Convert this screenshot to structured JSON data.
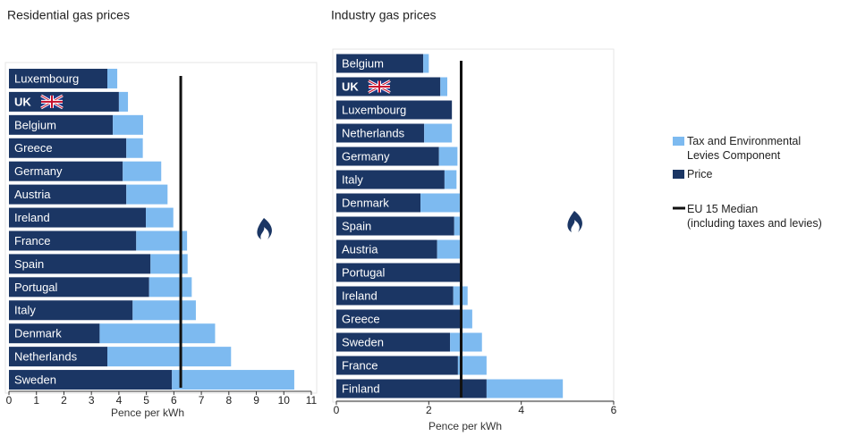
{
  "chart_data": [
    {
      "type": "stacked-barh",
      "title": "Residential gas prices",
      "xlabel": "Pence per kWh",
      "categories": [
        "Luxembourg",
        "UK",
        "Belgium",
        "Greece",
        "Germany",
        "Austria",
        "Ireland",
        "France",
        "Spain",
        "Portugal",
        "Italy",
        "Denmark",
        "Netherlands",
        "Sweden"
      ],
      "series": [
        {
          "name": "Price",
          "color": "#1b3664",
          "values": [
            3.58,
            4.0,
            3.78,
            4.27,
            4.14,
            4.27,
            4.98,
            4.63,
            5.15,
            5.1,
            4.5,
            3.3,
            3.58,
            5.93
          ]
        },
        {
          "name": "Tax and Environmental\nLevies Component",
          "color": "#7dbaf0",
          "values": [
            0.36,
            0.33,
            1.1,
            0.6,
            1.4,
            1.5,
            1.0,
            1.85,
            1.35,
            1.55,
            2.3,
            4.2,
            4.5,
            4.45
          ]
        }
      ],
      "median": {
        "name": "EU 15 Median\n(including taxes and levies)",
        "value": 6.25
      },
      "xlim": [
        0,
        11
      ],
      "xticks": [
        0,
        1,
        2,
        3,
        4,
        5,
        6,
        7,
        8,
        9,
        10,
        11
      ]
    },
    {
      "type": "stacked-barh",
      "title": "Industry gas prices",
      "xlabel": "Pence per kWh",
      "categories": [
        "Belgium",
        "UK",
        "Luxembourg",
        "Netherlands",
        "Germany",
        "Italy",
        "Denmark",
        "Spain",
        "Austria",
        "Portugal",
        "Ireland",
        "Greece",
        "Sweden",
        "France",
        "Finland"
      ],
      "series": [
        {
          "color": "#1b3664",
          "values": [
            1.88,
            2.25,
            2.5,
            1.9,
            2.22,
            2.34,
            1.82,
            2.55,
            2.18,
            2.7,
            2.53,
            2.7,
            2.46,
            2.63,
            3.25
          ]
        },
        {
          "color": "#7dbaf0",
          "values": [
            0.12,
            0.15,
            0,
            0.6,
            0.4,
            0.26,
            0.85,
            0.12,
            0.49,
            0,
            0.31,
            0.24,
            0.69,
            0.62,
            1.65
          ]
        }
      ],
      "median": {
        "value": 2.7
      },
      "xlim": [
        0,
        6
      ],
      "xticks": [
        0,
        2,
        4,
        6
      ]
    }
  ]
}
